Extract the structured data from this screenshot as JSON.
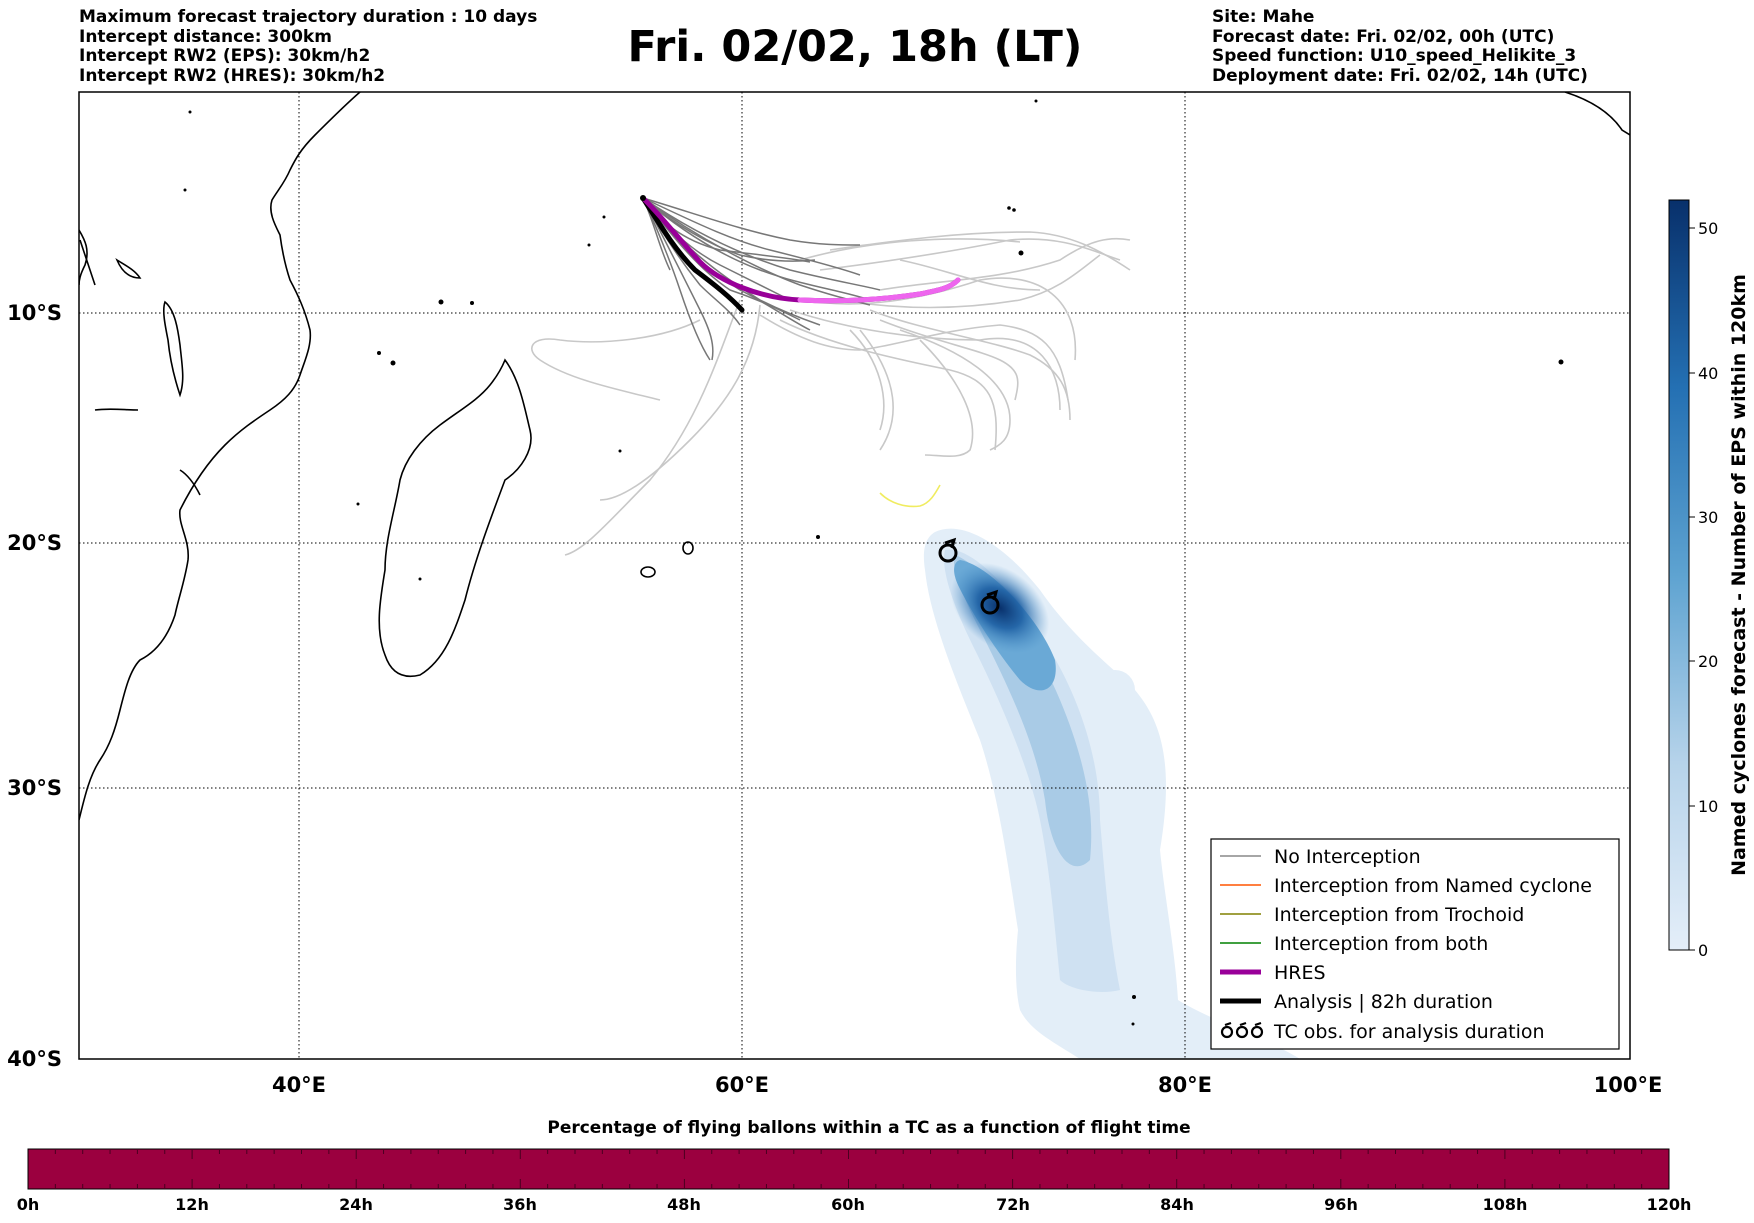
{
  "header": {
    "left_lines": [
      "Maximum forecast trajectory duration : 10 days",
      "Intercept distance: 300km",
      "Intercept RW2 (EPS):  30km/h2",
      "Intercept RW2 (HRES): 30km/h2"
    ],
    "title": "Fri. 02/02, 18h (LT)",
    "right_lines": [
      "Site: Mahe",
      "Forecast date: Fri. 02/02, 00h (UTC)",
      "Speed function: U10_speed_Helikite_3",
      "Deployment date: Fri. 02/02, 14h (UTC)"
    ]
  },
  "map": {
    "lon_range": [
      30,
      100
    ],
    "lat_range": [
      -40,
      2
    ],
    "lon_ticks": [
      {
        "value": 40,
        "label": "40°E"
      },
      {
        "value": 60,
        "label": "60°E"
      },
      {
        "value": 80,
        "label": "80°E"
      },
      {
        "value": 100,
        "label": "100°E"
      }
    ],
    "lat_ticks": [
      {
        "value": -10,
        "label": "10°S"
      },
      {
        "value": -20,
        "label": "20°S"
      },
      {
        "value": -30,
        "label": "30°S"
      },
      {
        "value": -40,
        "label": "40°S"
      }
    ],
    "site": {
      "name": "Mahe",
      "lon": 55.5,
      "lat": -4.6
    },
    "tc_obs": [
      {
        "lon": 69.3,
        "lat": -20.4
      },
      {
        "lon": 71.2,
        "lat": -22.7
      }
    ],
    "colors": {
      "no_interception": "#888888",
      "named_cyclone": "#ff5500",
      "trochoid": "#808000",
      "both": "#008000",
      "hres": "#990099",
      "hres_light": "#ee66ee",
      "analysis": "#000000"
    }
  },
  "legend": {
    "items": [
      {
        "label": "No Interception",
        "style": "no_interception"
      },
      {
        "label": "Interception from Named cyclone",
        "style": "named_cyclone"
      },
      {
        "label": "Interception from Trochoid",
        "style": "trochoid"
      },
      {
        "label": "Interception from both",
        "style": "both"
      },
      {
        "label": "HRES",
        "style": "hres"
      },
      {
        "label": "Analysis | 82h duration",
        "style": "analysis"
      },
      {
        "label": "TC obs. for analysis duration",
        "style": "tc_obs"
      }
    ]
  },
  "colorbar": {
    "label": "Named cyclones forecast - Number of EPS within 120km",
    "min": 0,
    "max": 52,
    "ticks": [
      "0",
      "10",
      "20",
      "30",
      "40",
      "50"
    ],
    "color_low": "#e4eef9",
    "color_high": "#08306b"
  },
  "time_bar": {
    "title": "Percentage of flying ballons within a TC as a function of flight time",
    "color": "#9b003f",
    "ticks": [
      "0h",
      "12h",
      "24h",
      "36h",
      "48h",
      "60h",
      "72h",
      "84h",
      "96h",
      "108h",
      "120h"
    ]
  },
  "chart_data": {
    "type": "map",
    "site": "Mahe",
    "hres_track": [
      [
        55.5,
        -4.6
      ],
      [
        57.0,
        -6.4
      ],
      [
        58.5,
        -7.8
      ],
      [
        60.0,
        -8.7
      ],
      [
        62.5,
        -9.4
      ],
      [
        65.5,
        -9.4
      ],
      [
        68.0,
        -9.2
      ],
      [
        69.8,
        -8.7
      ]
    ],
    "analysis_track": [
      [
        55.5,
        -4.6
      ],
      [
        56.6,
        -6.6
      ],
      [
        57.9,
        -8.4
      ],
      [
        59.2,
        -9.5
      ],
      [
        60.0,
        -10.0
      ]
    ],
    "eps_density_max_at": {
      "lon": 71.2,
      "lat": -22.7
    }
  }
}
